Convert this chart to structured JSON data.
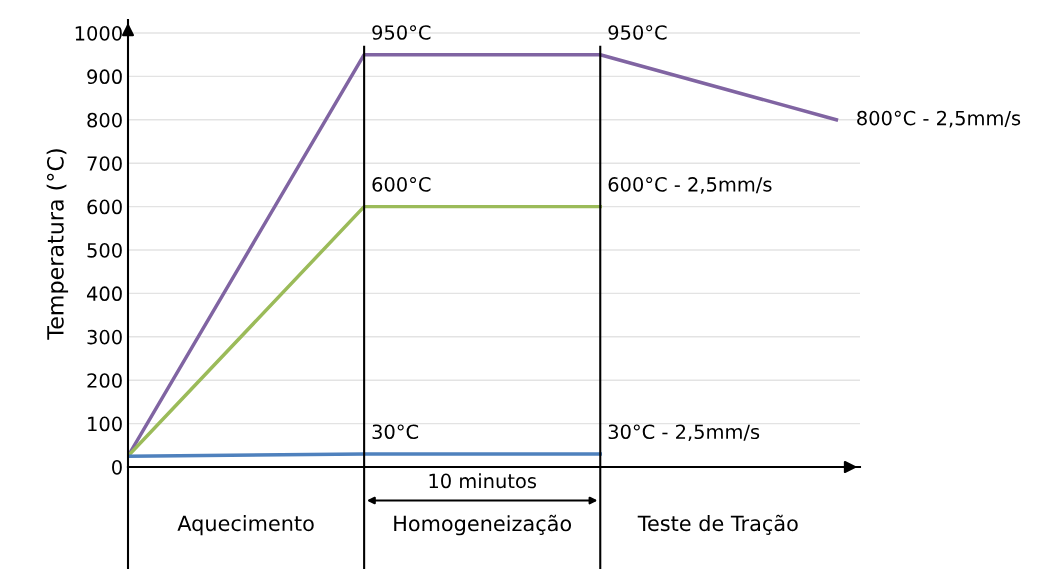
{
  "chart_data": {
    "type": "line",
    "ylabel": "Temperatura (°C)",
    "categories": [
      null,
      null,
      null,
      null
    ],
    "series": [
      {
        "color": "#8064a2",
        "values": [
          25,
          950,
          950,
          800
        ],
        "value_labels": [
          null,
          "950°C",
          "950°C",
          "800°C - 2,5mm/s"
        ]
      },
      {
        "color": "#9bbb59",
        "values": [
          25,
          600,
          600,
          null
        ],
        "value_labels": [
          null,
          "600°C",
          "600°C - 2,5mm/s",
          null
        ]
      },
      {
        "color": "#4f81bd",
        "values": [
          25,
          30,
          30,
          null
        ],
        "value_labels": [
          null,
          "30°C",
          "30°C - 2,5mm/s",
          null
        ]
      }
    ],
    "ylim": [
      0,
      1030
    ],
    "yticks": [
      0,
      100,
      200,
      300,
      400,
      500,
      600,
      700,
      800,
      900,
      1000
    ],
    "grid": "y",
    "annotations": [
      "Aquecimento",
      "Homogeneização",
      "Teste de Tração",
      "10 minutos"
    ]
  }
}
